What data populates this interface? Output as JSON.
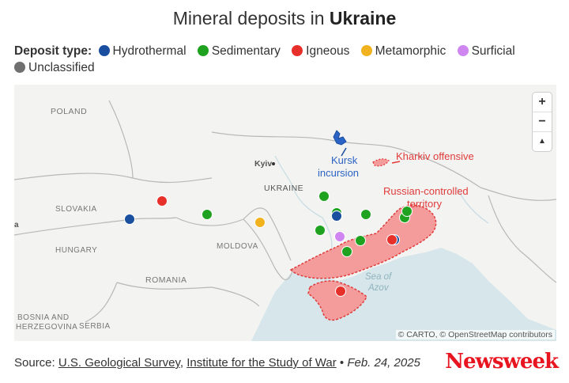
{
  "title": {
    "prefix": "Mineral deposits in ",
    "emphasis": "Ukraine"
  },
  "legend": {
    "label": "Deposit type:",
    "items": [
      {
        "name": "Hydrothermal",
        "color": "#1a4fa0"
      },
      {
        "name": "Sedimentary",
        "color": "#1fa21f"
      },
      {
        "name": "Igneous",
        "color": "#e8302a"
      },
      {
        "name": "Metamorphic",
        "color": "#f2b21e"
      },
      {
        "name": "Surficial",
        "color": "#cf86f0"
      },
      {
        "name": "Unclassified",
        "color": "#707070"
      }
    ]
  },
  "map": {
    "places": {
      "poland": "POLAND",
      "slovakia": "SLOVAKIA",
      "hungary": "HUNGARY",
      "romania": "ROMANIA",
      "moldova": "MOLDOVA",
      "ukraine": "UKRAINE",
      "kyiv": "Kyiv",
      "bosnia_line1": "BOSNIA AND",
      "bosnia_line2": "HERZEGOVINA",
      "serbia": "SERBIA",
      "edge_a": "a"
    },
    "annotations": {
      "kursk_line1": "Kursk",
      "kursk_line2": "incursion",
      "kharkiv": "Kharkiv offensive",
      "russian_line1": "Russian-controlled",
      "russian_line2": "territory",
      "sea_line1": "Sea of",
      "sea_line2": "Azov"
    },
    "controls": {
      "zoom_in": "+",
      "zoom_out": "−",
      "reset_north": "▲"
    },
    "attribution": "© CARTO, © OpenStreetMap contributors"
  },
  "footer": {
    "source_label": "Source: ",
    "source_1": "U.S. Geological Survey",
    "separator": ", ",
    "source_2": "Institute for the Study of War",
    "bullet": " • ",
    "date": "Feb. 24, 2025"
  },
  "logo": "Newsweek"
}
